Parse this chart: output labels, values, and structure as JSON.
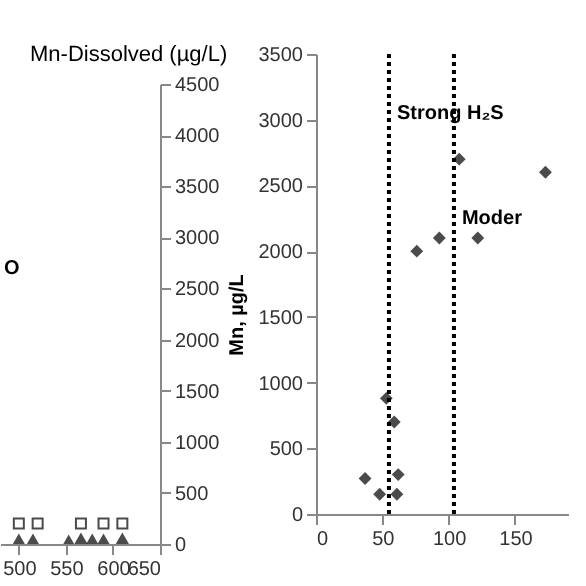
{
  "chart_data": [
    {
      "type": "scatter",
      "legend": "top right",
      "y2label": "Mn, µg/L",
      "xlim": [
        480,
        650
      ],
      "xticks": [
        500,
        550,
        600,
        650
      ],
      "y2lim": [
        0,
        4500
      ],
      "y2ticks": [
        0,
        500,
        1000,
        1500,
        2000,
        2500,
        3000,
        3500,
        4000,
        4500
      ],
      "grid": false,
      "annotations": [
        "O"
      ],
      "series": [
        {
          "color": "#000000",
          "marker": "triangle",
          "axis": "y2",
          "x": [
            500,
            515,
            553,
            566,
            578,
            590,
            610
          ],
          "values": [
            40,
            40,
            30,
            50,
            40,
            40,
            50
          ]
        },
        {
          "name": "Mn-Dissolved (µg/L)",
          "color": "#ffffff",
          "marker": "square",
          "axis": "y2",
          "x": [
            500,
            520,
            566,
            590,
            610
          ],
          "values": [
            200,
            200,
            200,
            200,
            200
          ]
        }
      ]
    },
    {
      "type": "scatter",
      "marker": "diamond",
      "xlim": [
        0,
        190
      ],
      "xticks": [
        0,
        50,
        100,
        150
      ],
      "ylim": [
        0,
        3500
      ],
      "yticks": [
        0,
        500,
        1000,
        1500,
        2000,
        2500,
        3000,
        3500
      ],
      "grid": false,
      "ref_lines": [
        {
          "axis": "x",
          "value": 55,
          "line_style": "dotted",
          "color": "#000000"
        },
        {
          "axis": "x",
          "value": 104,
          "line_style": "dotted",
          "color": "#000000"
        }
      ],
      "annotations": [
        {
          "text": "Strong H₂S",
          "x": 55,
          "y": 3050
        },
        {
          "text": "Moder",
          "x": 104,
          "y": 2250
        }
      ],
      "series": [
        {
          "color": "#000000",
          "x": [
            37,
            48,
            53,
            59,
            61,
            62,
            76,
            93,
            108,
            122,
            173
          ],
          "values": [
            270,
            150,
            880,
            700,
            150,
            300,
            2000,
            2100,
            2700,
            2100,
            2600
          ]
        }
      ]
    }
  ]
}
